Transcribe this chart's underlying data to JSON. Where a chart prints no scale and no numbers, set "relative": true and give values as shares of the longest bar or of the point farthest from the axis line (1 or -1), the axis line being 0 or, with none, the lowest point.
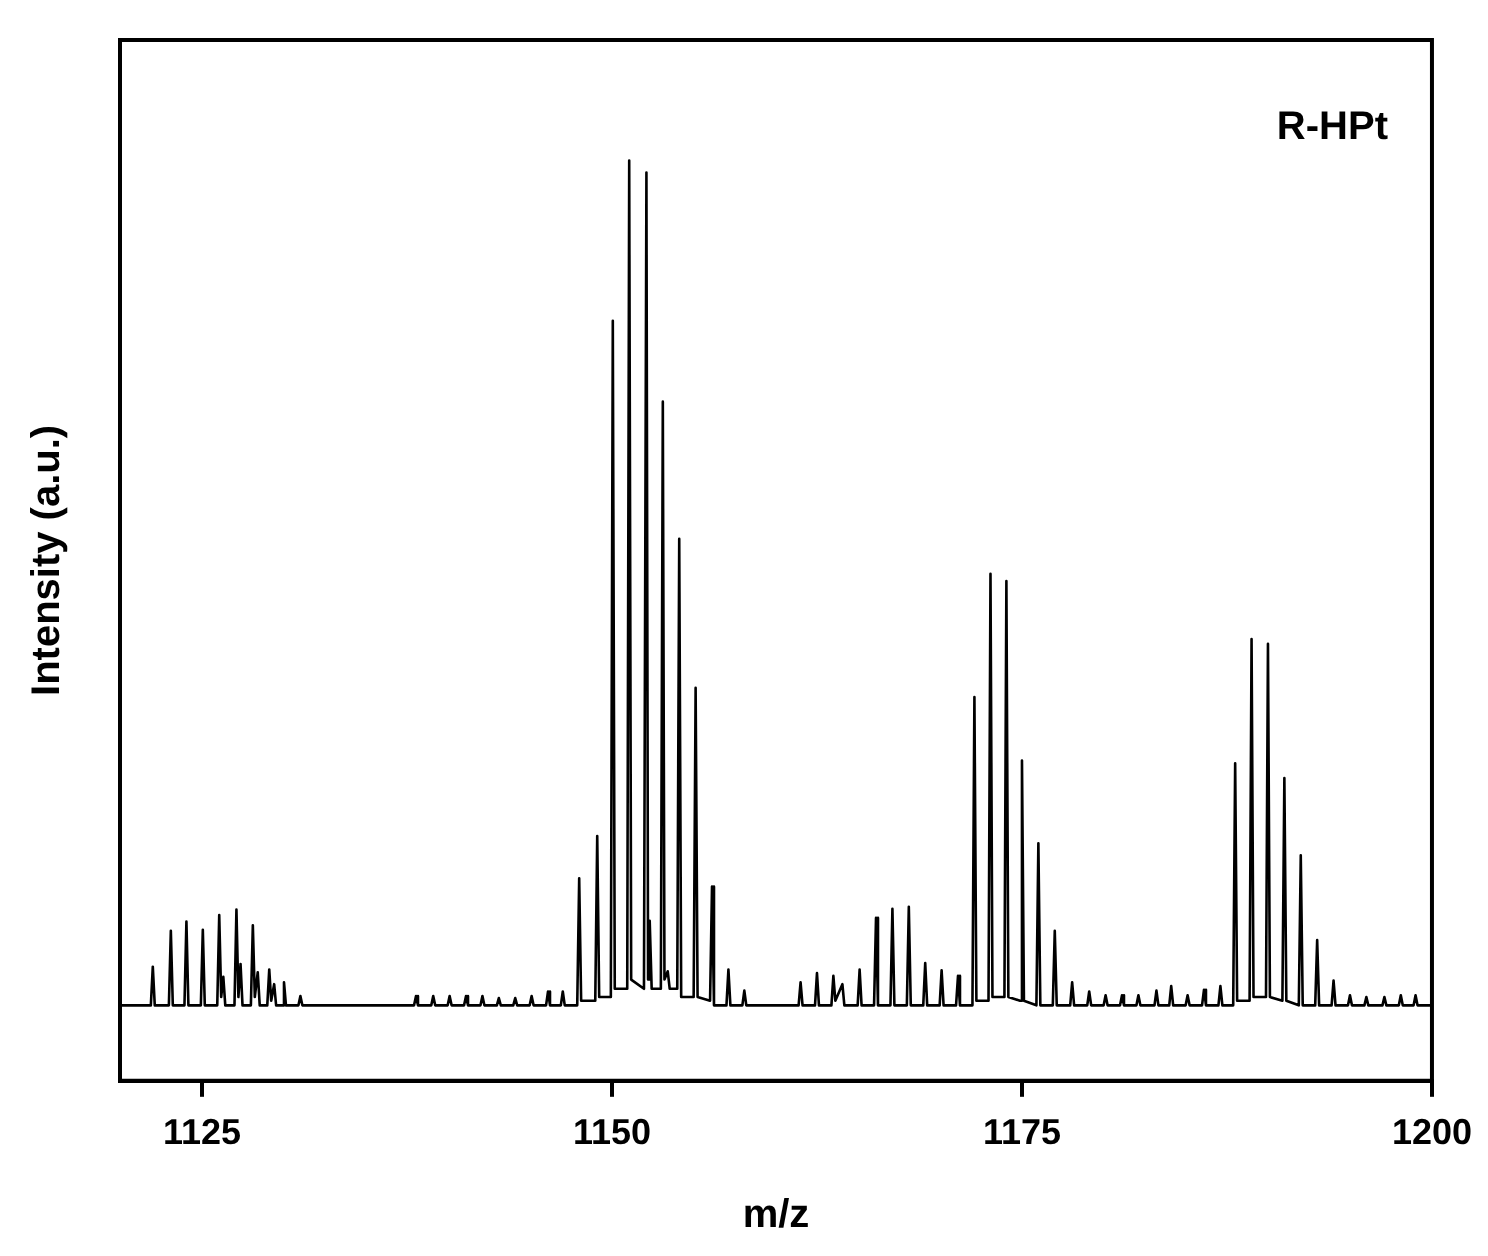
{
  "chart_data": {
    "type": "line",
    "title": "R-HPt",
    "xlabel": "m/z",
    "ylabel": "Intensity (a.u.)",
    "relative": true,
    "marker": "none",
    "color": "#000000",
    "xlim": [
      1120,
      1200
    ],
    "xticks": [
      1125,
      1150,
      1175,
      1200
    ],
    "x": [
      1120,
      1121.88,
      1122.0,
      1122.12,
      1122.98,
      1123.1,
      1123.22,
      1123.93,
      1124.05,
      1124.17,
      1124.93,
      1125.05,
      1125.17,
      1125.93,
      1126.05,
      1126.17,
      1126.3,
      1126.42,
      1126.98,
      1127.1,
      1127.22,
      1127.35,
      1127.47,
      1127.98,
      1128.1,
      1128.22,
      1128.4,
      1128.52,
      1128.98,
      1129.1,
      1129.22,
      1129.4,
      1129.52,
      1129.88,
      1130.0,
      1130.12,
      1130.88,
      1131.0,
      1131.12,
      1137.93,
      1138.05,
      1138.17,
      1138.98,
      1139.1,
      1139.22,
      1139.98,
      1140.1,
      1140.22,
      1140.98,
      1141.1,
      1141.22,
      1141.98,
      1142.1,
      1142.22,
      1142.98,
      1143.1,
      1143.22,
      1143.98,
      1144.1,
      1144.22,
      1144.98,
      1145.1,
      1145.22,
      1145.98,
      1146.1,
      1146.22,
      1146.88,
      1147.0,
      1147.12,
      1147.88,
      1148.0,
      1148.12,
      1148.98,
      1149.1,
      1149.22,
      1149.93,
      1150.05,
      1150.17,
      1150.93,
      1151.05,
      1151.17,
      1151.95,
      1152.1,
      1152.2,
      1152.3,
      1152.42,
      1152.98,
      1153.1,
      1153.2,
      1153.4,
      1153.52,
      1153.98,
      1154.1,
      1154.22,
      1154.98,
      1155.1,
      1155.22,
      1155.98,
      1156.1,
      1156.22,
      1156.98,
      1157.1,
      1157.22,
      1157.95,
      1158.07,
      1158.19,
      1161.38,
      1161.5,
      1161.62,
      1162.38,
      1162.5,
      1162.62,
      1163.38,
      1163.5,
      1163.62,
      1164.05,
      1164.17,
      1164.98,
      1165.1,
      1165.22,
      1165.98,
      1166.1,
      1166.22,
      1166.98,
      1167.1,
      1167.22,
      1167.98,
      1168.1,
      1168.22,
      1168.98,
      1169.1,
      1169.22,
      1169.98,
      1170.1,
      1170.22,
      1170.98,
      1171.1,
      1171.22,
      1171.98,
      1172.1,
      1172.22,
      1172.96,
      1173.08,
      1173.2,
      1173.93,
      1174.05,
      1174.17,
      1174.88,
      1175.0,
      1175.12,
      1175.88,
      1176.0,
      1176.12,
      1176.88,
      1177.0,
      1177.12,
      1177.94,
      1178.06,
      1178.18,
      1178.98,
      1179.1,
      1179.22,
      1179.98,
      1180.1,
      1180.22,
      1180.98,
      1181.1,
      1181.22,
      1181.98,
      1182.1,
      1182.22,
      1183.08,
      1183.2,
      1183.32,
      1183.98,
      1184.1,
      1184.22,
      1184.98,
      1185.1,
      1185.22,
      1185.98,
      1186.1,
      1186.22,
      1186.98,
      1187.1,
      1187.22,
      1187.88,
      1188.0,
      1188.12,
      1188.88,
      1189.0,
      1189.12,
      1189.88,
      1190.0,
      1190.12,
      1190.88,
      1191.0,
      1191.12,
      1191.88,
      1192.0,
      1192.12,
      1192.88,
      1193.0,
      1193.12,
      1193.88,
      1194.0,
      1194.12,
      1194.88,
      1195.0,
      1195.12,
      1195.88,
      1196.0,
      1196.12,
      1196.98,
      1197.1,
      1197.22,
      1197.98,
      1198.1,
      1198.22,
      1198.88,
      1199.0,
      1199.12,
      1200
    ],
    "values": [
      0.082,
      0.082,
      0.124,
      0.082,
      0.082,
      0.163,
      0.082,
      0.082,
      0.173,
      0.082,
      0.082,
      0.164,
      0.082,
      0.082,
      0.18,
      0.091,
      0.113,
      0.082,
      0.082,
      0.186,
      0.091,
      0.127,
      0.082,
      0.082,
      0.169,
      0.091,
      0.118,
      0.082,
      0.082,
      0.121,
      0.087,
      0.105,
      0.082,
      0.082,
      0.107,
      0.082,
      0.082,
      0.092,
      0.082,
      0.082,
      0.092,
      0.082,
      0.082,
      0.092,
      0.082,
      0.082,
      0.092,
      0.082,
      0.082,
      0.092,
      0.082,
      0.082,
      0.092,
      0.082,
      0.082,
      0.09,
      0.082,
      0.082,
      0.09,
      0.082,
      0.082,
      0.092,
      0.082,
      0.082,
      0.097,
      0.082,
      0.082,
      0.097,
      0.082,
      0.082,
      0.22,
      0.087,
      0.087,
      0.266,
      0.091,
      0.091,
      0.826,
      0.1,
      0.1,
      1,
      0.11,
      0.1,
      0.987,
      0.11,
      0.174,
      0.1,
      0.1,
      0.738,
      0.11,
      0.119,
      0.1,
      0.1,
      0.589,
      0.091,
      0.091,
      0.427,
      0.091,
      0.087,
      0.211,
      0.082,
      0.082,
      0.121,
      0.082,
      0.082,
      0.098,
      0.082,
      0.082,
      0.107,
      0.082,
      0.082,
      0.117,
      0.082,
      0.082,
      0.114,
      0.087,
      0.105,
      0.082,
      0.082,
      0.121,
      0.082,
      0.082,
      0.177,
      0.082,
      0.082,
      0.187,
      0.082,
      0.082,
      0.189,
      0.082,
      0.082,
      0.128,
      0.082,
      0.082,
      0.12,
      0.082,
      0.082,
      0.114,
      0.082,
      0.082,
      0.417,
      0.087,
      0.087,
      0.551,
      0.091,
      0.091,
      0.543,
      0.091,
      0.087,
      0.348,
      0.087,
      0.082,
      0.258,
      0.082,
      0.082,
      0.163,
      0.082,
      0.082,
      0.107,
      0.082,
      0.082,
      0.097,
      0.082,
      0.082,
      0.093,
      0.082,
      0.082,
      0.093,
      0.082,
      0.082,
      0.093,
      0.082,
      0.082,
      0.098,
      0.082,
      0.082,
      0.103,
      0.082,
      0.082,
      0.093,
      0.082,
      0.082,
      0.099,
      0.082,
      0.082,
      0.103,
      0.082,
      0.082,
      0.345,
      0.087,
      0.087,
      0.48,
      0.091,
      0.091,
      0.475,
      0.091,
      0.087,
      0.329,
      0.087,
      0.082,
      0.245,
      0.082,
      0.082,
      0.153,
      0.082,
      0.082,
      0.109,
      0.082,
      0.082,
      0.093,
      0.082,
      0.082,
      0.091,
      0.082,
      0.082,
      0.091,
      0.082,
      0.082,
      0.093,
      0.082,
      0.082,
      0.093,
      0.082,
      0.082
    ]
  }
}
